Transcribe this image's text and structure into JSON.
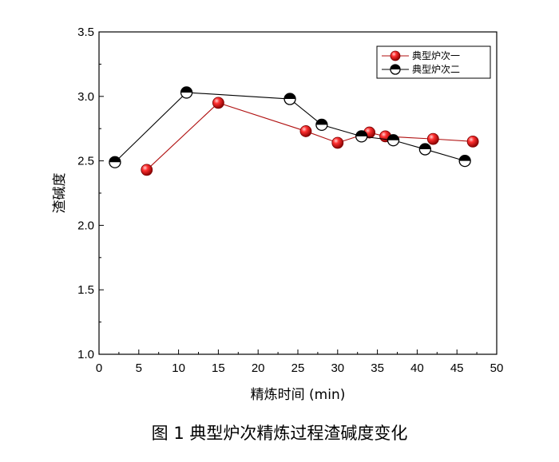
{
  "caption": "图 1    典型炉次精炼过程渣碱度变化",
  "chart_data": {
    "type": "line",
    "xlabel": "精炼时间 (min)",
    "ylabel": "渣碱度",
    "xlim": [
      0,
      50
    ],
    "ylim": [
      1.0,
      3.5
    ],
    "xticks": [
      0,
      5,
      10,
      15,
      20,
      25,
      30,
      35,
      40,
      45,
      50
    ],
    "yticks": [
      1.0,
      1.5,
      2.0,
      2.5,
      3.0,
      3.5
    ],
    "grid": false,
    "legend_position": "top-right",
    "series": [
      {
        "name": "典型炉次一",
        "color": "#e02020",
        "marker": "filled-sphere",
        "x": [
          6,
          15,
          26,
          30,
          34,
          36,
          42,
          47
        ],
        "y": [
          2.43,
          2.95,
          2.73,
          2.64,
          2.72,
          2.69,
          2.67,
          2.65
        ]
      },
      {
        "name": "典型炉次二",
        "color": "#000000",
        "marker": "half-filled-circle",
        "x": [
          2,
          11,
          24,
          28,
          33,
          37,
          41,
          46
        ],
        "y": [
          2.49,
          3.03,
          2.98,
          2.78,
          2.69,
          2.66,
          2.59,
          2.5
        ]
      }
    ]
  }
}
